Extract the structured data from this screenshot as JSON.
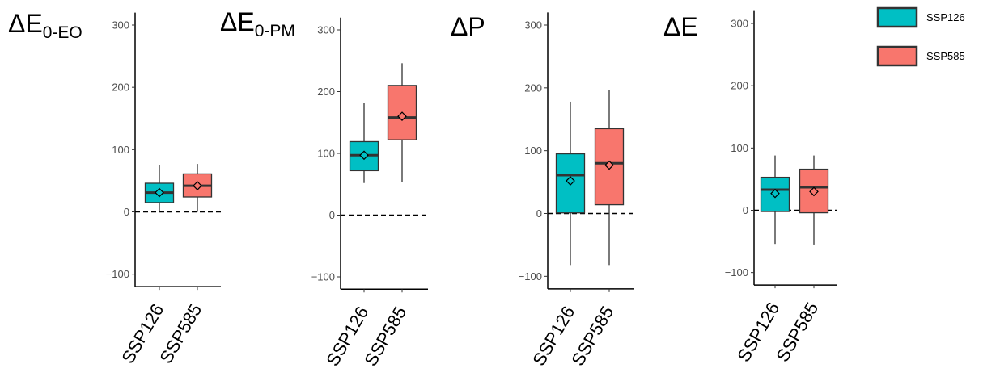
{
  "chart_data": [
    {
      "type": "box",
      "title": "ΔE",
      "title_subscript": "0-EO",
      "categories": [
        "SSP126",
        "SSP585"
      ],
      "ylim": [
        -120,
        320
      ],
      "yticks": [
        -100,
        0,
        100,
        200,
        300
      ],
      "reference_line": 0,
      "boxes": [
        {
          "category": "SSP126",
          "whisker_low": 0,
          "q1": 15,
          "median": 31,
          "q3": 46,
          "whisker_high": 75,
          "mean": 31
        },
        {
          "category": "SSP585",
          "whisker_low": 0,
          "q1": 24,
          "median": 42,
          "q3": 61,
          "whisker_high": 77,
          "mean": 42
        }
      ]
    },
    {
      "type": "box",
      "title": "ΔE",
      "title_subscript": "0-PM",
      "categories": [
        "SSP126",
        "SSP585"
      ],
      "ylim": [
        -120,
        320
      ],
      "yticks": [
        -100,
        0,
        100,
        200,
        300
      ],
      "reference_line": 0,
      "boxes": [
        {
          "category": "SSP126",
          "whisker_low": 52,
          "q1": 72,
          "median": 97,
          "q3": 119,
          "whisker_high": 182,
          "mean": 97
        },
        {
          "category": "SSP585",
          "whisker_low": 54,
          "q1": 122,
          "median": 158,
          "q3": 210,
          "whisker_high": 246,
          "mean": 160
        }
      ]
    },
    {
      "type": "box",
      "title": "ΔP",
      "title_subscript": "",
      "categories": [
        "SSP126",
        "SSP585"
      ],
      "ylim": [
        -120,
        320
      ],
      "yticks": [
        -100,
        0,
        100,
        200,
        300
      ],
      "reference_line": 0,
      "boxes": [
        {
          "category": "SSP126",
          "whisker_low": -82,
          "q1": 1,
          "median": 61,
          "q3": 95,
          "whisker_high": 178,
          "mean": 52
        },
        {
          "category": "SSP585",
          "whisker_low": -82,
          "q1": 14,
          "median": 80,
          "q3": 135,
          "whisker_high": 197,
          "mean": 77
        }
      ]
    },
    {
      "type": "box",
      "title": "ΔE",
      "title_subscript": "",
      "categories": [
        "SSP126",
        "SSP585"
      ],
      "ylim": [
        -120,
        320
      ],
      "yticks": [
        -100,
        0,
        100,
        200,
        300
      ],
      "reference_line": 0,
      "boxes": [
        {
          "category": "SSP126",
          "whisker_low": -54,
          "q1": -2,
          "median": 33,
          "q3": 53,
          "whisker_high": 88,
          "mean": 27
        },
        {
          "category": "SSP585",
          "whisker_low": -55,
          "q1": -4,
          "median": 37,
          "q3": 66,
          "whisker_high": 88,
          "mean": 30
        }
      ]
    }
  ],
  "legend": {
    "placement": "top-right",
    "items": [
      {
        "label": "SSP126",
        "color": "#00bfc4"
      },
      {
        "label": "SSP585",
        "color": "#f8766d"
      }
    ]
  },
  "colors": {
    "SSP126": "#00bfc4",
    "SSP585": "#f8766d",
    "outline": "#333333",
    "median": "#333333"
  }
}
